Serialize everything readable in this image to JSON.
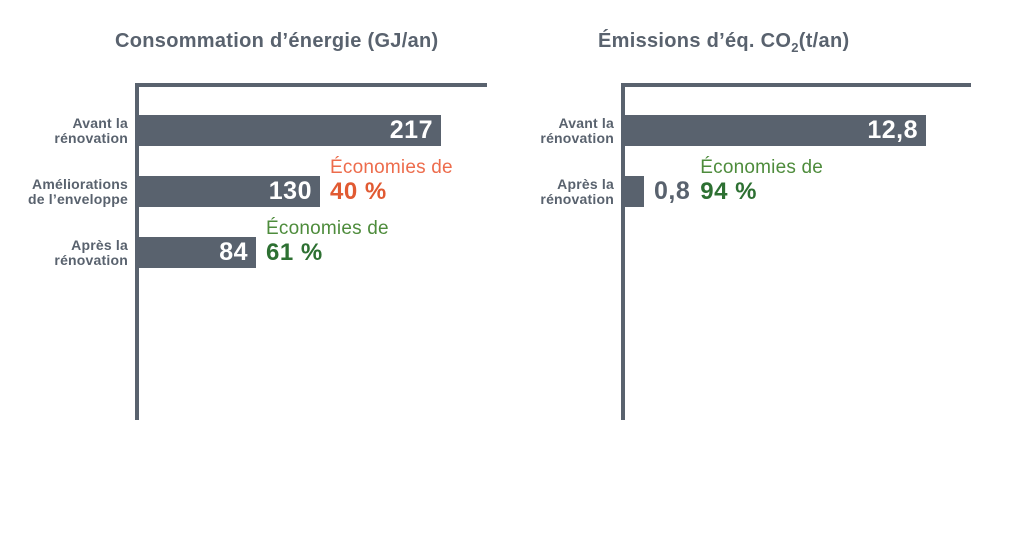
{
  "colors": {
    "bar_slate": "#59626E",
    "bar_value_text": "#FFFFFF",
    "orange_label": "#ED6C4C",
    "orange_percent": "#E15A32",
    "green_label": "#4E8C3C",
    "green_percent": "#2D7032",
    "background": "#FFFFFF"
  },
  "charts": [
    {
      "title": {
        "prefix": "Consommation d’énergie (GJ/an)",
        "sub": "",
        "suffix": ""
      },
      "rows": [
        {
          "label1": "Avant la",
          "label2": "rénovation",
          "value": "217"
        },
        {
          "label1": "Améliorations",
          "label2": "de l’enveloppe",
          "value": "130",
          "savings_label": "Économies de",
          "savings_pct": "40 %"
        },
        {
          "label1": "Après la",
          "label2": "rénovation",
          "value": "84",
          "savings_label": "Économies de",
          "savings_pct": "61 %"
        }
      ]
    },
    {
      "title": {
        "prefix": "Émissions d’éq. CO",
        "sub": "2",
        "suffix": "(t/an)"
      },
      "rows": [
        {
          "label1": "Avant la",
          "label2": "rénovation",
          "value": "12,8"
        },
        {
          "label1": "Après la",
          "label2": "rénovation",
          "value_outside": "0,8",
          "savings_label": "Économies de",
          "savings_pct": "94 %"
        }
      ]
    }
  ],
  "chart_data": [
    {
      "type": "bar",
      "orientation": "horizontal",
      "title": "Consommation d’énergie (GJ/an)",
      "categories": [
        "Avant la rénovation",
        "Améliorations de l’enveloppe",
        "Après la rénovation"
      ],
      "values": [
        217,
        130,
        84
      ],
      "value_labels": [
        "217",
        "130",
        "84"
      ],
      "xlabel": "",
      "ylabel": "",
      "xlim": [
        0,
        250
      ],
      "bar_color": "#59626E",
      "grid": false,
      "legend": false,
      "annotations": [
        {
          "category": "Améliorations de l’enveloppe",
          "text": "Économies de 40 %",
          "color": "#E15A32"
        },
        {
          "category": "Après la rénovation",
          "text": "Économies de 61 %",
          "color": "#2D7032"
        }
      ]
    },
    {
      "type": "bar",
      "orientation": "horizontal",
      "title": "Émissions d’éq. CO₂(t/an)",
      "categories": [
        "Avant la rénovation",
        "Après la rénovation"
      ],
      "values": [
        12.8,
        0.8
      ],
      "value_labels": [
        "12,8",
        "0,8"
      ],
      "xlabel": "",
      "ylabel": "",
      "xlim": [
        0,
        14.7
      ],
      "bar_color": "#59626E",
      "grid": false,
      "legend": false,
      "annotations": [
        {
          "category": "Après la rénovation",
          "text": "Économies de 94 %",
          "color": "#2D7032"
        }
      ]
    }
  ]
}
